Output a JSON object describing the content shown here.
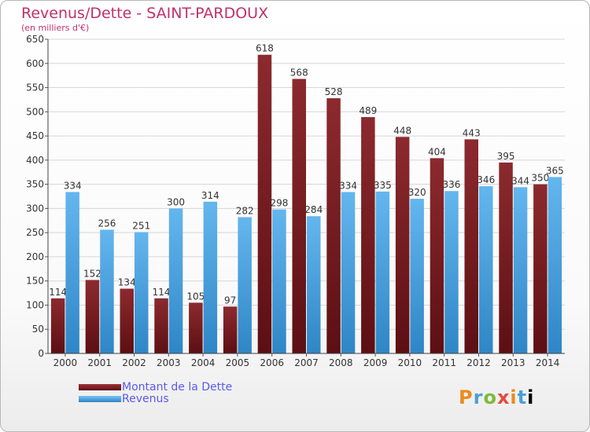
{
  "title": "Revenus/Dette - SAINT-PARDOUX",
  "subtitle": "(en milliers d'€)",
  "logo": [
    "P",
    "r",
    "o",
    "x",
    "i",
    "t",
    "i"
  ],
  "colors": {
    "dette": "#7a1f22",
    "revenus": "#4aa3e4",
    "title": "#c0306c",
    "legend_text": "#5a5aec"
  },
  "chart_data": {
    "type": "bar",
    "categories": [
      "2000",
      "2001",
      "2002",
      "2003",
      "2004",
      "2005",
      "2006",
      "2007",
      "2008",
      "2009",
      "2010",
      "2011",
      "2012",
      "2013",
      "2014"
    ],
    "series": [
      {
        "name": "Montant de la Dette",
        "values": [
          114,
          152,
          134,
          114,
          105,
          97,
          618,
          568,
          528,
          489,
          448,
          404,
          443,
          395,
          350
        ]
      },
      {
        "name": "Revenus",
        "values": [
          334,
          256,
          251,
          300,
          314,
          282,
          298,
          284,
          334,
          335,
          320,
          336,
          346,
          344,
          365
        ]
      }
    ],
    "ylim": [
      0,
      650
    ],
    "yticks": [
      0,
      50,
      100,
      150,
      200,
      250,
      300,
      350,
      400,
      450,
      500,
      550,
      600,
      650
    ],
    "grid": true,
    "legend_position": "bottom-left"
  }
}
